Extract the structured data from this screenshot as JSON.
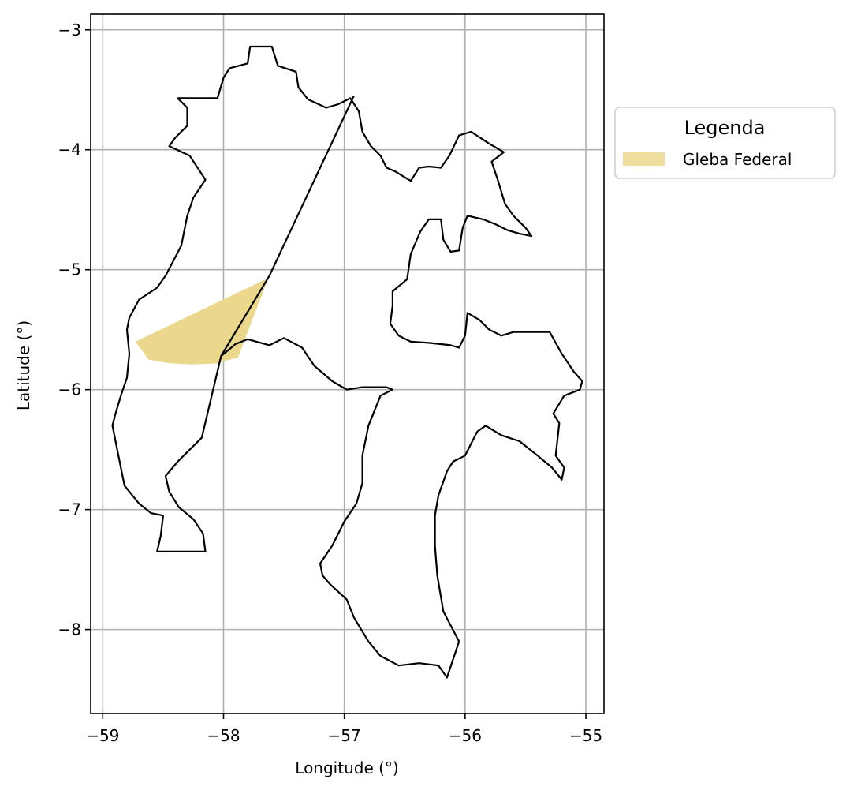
{
  "chart_data": {
    "type": "map",
    "xlabel": "Longitude (°)",
    "ylabel": "Latitude (°)",
    "xlim": [
      -59.1,
      -54.85
    ],
    "ylim": [
      -8.7,
      -2.87
    ],
    "x_ticks": [
      -59,
      -58,
      -57,
      -56,
      -55
    ],
    "x_tick_labels": [
      "−59",
      "−58",
      "−57",
      "−56",
      "−55"
    ],
    "y_ticks": [
      -3,
      -4,
      -5,
      -6,
      -7,
      -8
    ],
    "y_tick_labels": [
      "−3",
      "−4",
      "−5",
      "−6",
      "−7",
      "−8"
    ],
    "grid": true,
    "legend": {
      "title": "Legenda",
      "placement": "outside-right-top",
      "entries": [
        {
          "label": "Gleba Federal",
          "color": "#ecd88c"
        }
      ]
    },
    "boundary": [
      [
        -58.38,
        -3.57
      ],
      [
        -58.05,
        -3.57
      ],
      [
        -58.0,
        -3.4
      ],
      [
        -57.95,
        -3.32
      ],
      [
        -57.8,
        -3.28
      ],
      [
        -57.78,
        -3.14
      ],
      [
        -57.6,
        -3.14
      ],
      [
        -57.55,
        -3.3
      ],
      [
        -57.4,
        -3.35
      ],
      [
        -57.38,
        -3.48
      ],
      [
        -57.3,
        -3.58
      ],
      [
        -57.15,
        -3.65
      ],
      [
        -57.05,
        -3.62
      ],
      [
        -56.95,
        -3.57
      ],
      [
        -56.88,
        -3.68
      ],
      [
        -56.85,
        -3.85
      ],
      [
        -56.78,
        -3.97
      ],
      [
        -56.7,
        -4.05
      ],
      [
        -56.65,
        -4.15
      ],
      [
        -56.58,
        -4.18
      ],
      [
        -56.45,
        -4.26
      ],
      [
        -56.38,
        -4.15
      ],
      [
        -56.3,
        -4.14
      ],
      [
        -56.2,
        -4.15
      ],
      [
        -56.13,
        -4.05
      ],
      [
        -56.05,
        -3.88
      ],
      [
        -55.95,
        -3.85
      ],
      [
        -55.8,
        -3.95
      ],
      [
        -55.68,
        -4.02
      ],
      [
        -55.78,
        -4.1
      ],
      [
        -55.73,
        -4.25
      ],
      [
        -55.67,
        -4.45
      ],
      [
        -55.6,
        -4.55
      ],
      [
        -55.5,
        -4.65
      ],
      [
        -55.45,
        -4.72
      ],
      [
        -55.55,
        -4.7
      ],
      [
        -55.65,
        -4.67
      ],
      [
        -55.75,
        -4.62
      ],
      [
        -55.85,
        -4.58
      ],
      [
        -55.98,
        -4.55
      ],
      [
        -56.02,
        -4.65
      ],
      [
        -56.05,
        -4.84
      ],
      [
        -56.12,
        -4.85
      ],
      [
        -56.18,
        -4.75
      ],
      [
        -56.2,
        -4.58
      ],
      [
        -56.3,
        -4.58
      ],
      [
        -56.37,
        -4.68
      ],
      [
        -56.45,
        -4.87
      ],
      [
        -56.48,
        -5.08
      ],
      [
        -56.6,
        -5.18
      ],
      [
        -56.6,
        -5.3
      ],
      [
        -56.62,
        -5.45
      ],
      [
        -56.55,
        -5.55
      ],
      [
        -56.45,
        -5.6
      ],
      [
        -56.3,
        -5.61
      ],
      [
        -56.12,
        -5.63
      ],
      [
        -56.05,
        -5.65
      ],
      [
        -56.0,
        -5.55
      ],
      [
        -55.98,
        -5.36
      ],
      [
        -55.88,
        -5.42
      ],
      [
        -55.8,
        -5.5
      ],
      [
        -55.7,
        -5.55
      ],
      [
        -55.6,
        -5.52
      ],
      [
        -55.4,
        -5.52
      ],
      [
        -55.3,
        -5.52
      ],
      [
        -55.2,
        -5.7
      ],
      [
        -55.1,
        -5.85
      ],
      [
        -55.03,
        -5.93
      ],
      [
        -55.05,
        -6.0
      ],
      [
        -55.18,
        -6.05
      ],
      [
        -55.27,
        -6.2
      ],
      [
        -55.22,
        -6.28
      ],
      [
        -55.25,
        -6.55
      ],
      [
        -55.18,
        -6.65
      ],
      [
        -55.2,
        -6.75
      ],
      [
        -55.28,
        -6.65
      ],
      [
        -55.4,
        -6.55
      ],
      [
        -55.55,
        -6.43
      ],
      [
        -55.7,
        -6.38
      ],
      [
        -55.83,
        -6.3
      ],
      [
        -55.9,
        -6.35
      ],
      [
        -56.0,
        -6.55
      ],
      [
        -56.1,
        -6.6
      ],
      [
        -56.15,
        -6.68
      ],
      [
        -56.22,
        -6.88
      ],
      [
        -56.25,
        -7.05
      ],
      [
        -56.25,
        -7.3
      ],
      [
        -56.23,
        -7.55
      ],
      [
        -56.18,
        -7.85
      ],
      [
        -56.05,
        -8.1
      ],
      [
        -56.1,
        -8.25
      ],
      [
        -56.15,
        -8.4
      ],
      [
        -56.22,
        -8.3
      ],
      [
        -56.38,
        -8.28
      ],
      [
        -56.55,
        -8.3
      ],
      [
        -56.7,
        -8.22
      ],
      [
        -56.8,
        -8.1
      ],
      [
        -56.92,
        -7.9
      ],
      [
        -56.98,
        -7.75
      ],
      [
        -57.12,
        -7.62
      ],
      [
        -57.18,
        -7.55
      ],
      [
        -57.2,
        -7.45
      ],
      [
        -57.1,
        -7.3
      ],
      [
        -57.0,
        -7.1
      ],
      [
        -56.9,
        -6.95
      ],
      [
        -56.85,
        -6.78
      ],
      [
        -56.85,
        -6.55
      ],
      [
        -56.8,
        -6.3
      ],
      [
        -56.7,
        -6.05
      ],
      [
        -56.6,
        -6.0
      ],
      [
        -56.65,
        -5.98
      ],
      [
        -56.85,
        -5.98
      ],
      [
        -56.98,
        -6.0
      ],
      [
        -57.1,
        -5.93
      ],
      [
        -57.25,
        -5.8
      ],
      [
        -57.35,
        -5.65
      ],
      [
        -57.5,
        -5.57
      ],
      [
        -57.62,
        -5.63
      ],
      [
        -57.8,
        -5.58
      ],
      [
        -57.9,
        -5.62
      ],
      [
        -58.02,
        -5.72
      ],
      [
        -58.18,
        -6.4
      ],
      [
        -58.28,
        -6.5
      ],
      [
        -58.38,
        -6.6
      ],
      [
        -58.48,
        -6.72
      ],
      [
        -58.45,
        -6.85
      ],
      [
        -58.37,
        -6.98
      ],
      [
        -58.25,
        -7.08
      ],
      [
        -58.17,
        -7.2
      ],
      [
        -58.15,
        -7.35
      ],
      [
        -58.55,
        -7.35
      ],
      [
        -58.52,
        -7.22
      ],
      [
        -58.5,
        -7.05
      ],
      [
        -58.6,
        -7.03
      ],
      [
        -58.7,
        -6.95
      ],
      [
        -58.82,
        -6.8
      ],
      [
        -58.87,
        -6.55
      ],
      [
        -58.92,
        -6.3
      ],
      [
        -58.9,
        -6.22
      ],
      [
        -58.85,
        -6.05
      ],
      [
        -58.8,
        -5.9
      ],
      [
        -58.78,
        -5.7
      ],
      [
        -58.8,
        -5.5
      ],
      [
        -58.78,
        -5.4
      ],
      [
        -58.7,
        -5.25
      ],
      [
        -58.55,
        -5.15
      ],
      [
        -58.48,
        -5.05
      ],
      [
        -58.35,
        -4.8
      ],
      [
        -58.3,
        -4.55
      ],
      [
        -58.25,
        -4.4
      ],
      [
        -58.15,
        -4.25
      ],
      [
        -58.28,
        -4.05
      ],
      [
        -58.45,
        -3.97
      ],
      [
        -58.4,
        -3.9
      ],
      [
        -58.3,
        -3.8
      ],
      [
        -58.3,
        -3.65
      ],
      [
        -58.38,
        -3.57
      ]
    ],
    "chord": [
      [
        -56.92,
        -3.55
      ],
      [
        -57.62,
        -5.05
      ],
      [
        -58.02,
        -5.72
      ]
    ],
    "gleba_federal": [
      [
        -58.73,
        -5.6
      ],
      [
        -57.63,
        -5.07
      ],
      [
        -57.88,
        -5.73
      ],
      [
        -58.05,
        -5.78
      ],
      [
        -58.25,
        -5.79
      ],
      [
        -58.45,
        -5.78
      ],
      [
        -58.62,
        -5.75
      ],
      [
        -58.67,
        -5.68
      ]
    ]
  }
}
